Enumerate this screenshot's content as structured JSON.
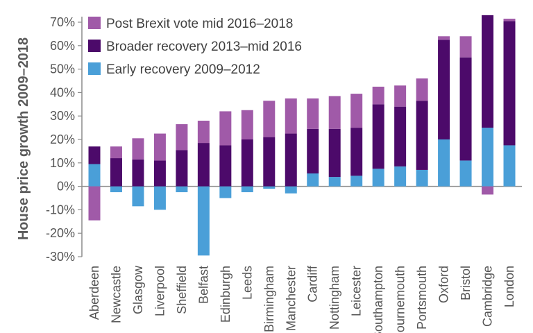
{
  "chart_data": {
    "type": "bar",
    "stacked": true,
    "ylabel": "House price growth 2009–2018",
    "xlabel": "",
    "ylim": [
      -30,
      70
    ],
    "ytick_step": 10,
    "ytick_labels": [
      "-30%",
      "-20%",
      "-10%",
      "0%",
      "10%",
      "20%",
      "30%",
      "40%",
      "50%",
      "60%",
      "70%"
    ],
    "legend_position": "top-left",
    "grid": false,
    "categories": [
      "Aberdeen",
      "Newcastle",
      "Glasgow",
      "Liverpool",
      "Sheffield",
      "Belfast",
      "Edinburgh",
      "Leeds",
      "Birmingham",
      "Manchester",
      "Cardiff",
      "Nottingham",
      "Leicester",
      "Southampton",
      "Bournemouth",
      "Portsmouth",
      "Oxford",
      "Bristol",
      "Cambridge",
      "London"
    ],
    "series": [
      {
        "name": "Early recovery 2009–2012",
        "color": "#4a9fd8",
        "values": [
          9.5,
          -2.5,
          -8.5,
          -10,
          -2.5,
          -29.5,
          -5,
          -2.5,
          -1,
          -3,
          5.5,
          4,
          4.5,
          7.5,
          8.5,
          7,
          20,
          11,
          25,
          17.5
        ]
      },
      {
        "name": "Broader recovery 2013–mid 2016",
        "color": "#4c0a6a",
        "values": [
          7.5,
          12,
          11.5,
          11,
          15.5,
          18.5,
          17.5,
          20,
          21,
          22.5,
          19,
          20.5,
          20.5,
          27.5,
          25.5,
          29.5,
          42.5,
          44,
          48,
          53
        ]
      },
      {
        "name": "Post Brexit vote mid 2016–2018",
        "color": "#a05aa8",
        "values": [
          -14.5,
          5,
          9,
          11.5,
          11,
          9.5,
          14.5,
          12.5,
          15.5,
          15,
          13,
          14,
          14.5,
          7.5,
          9,
          9.5,
          1.5,
          9,
          -3.5,
          1
        ]
      }
    ]
  }
}
